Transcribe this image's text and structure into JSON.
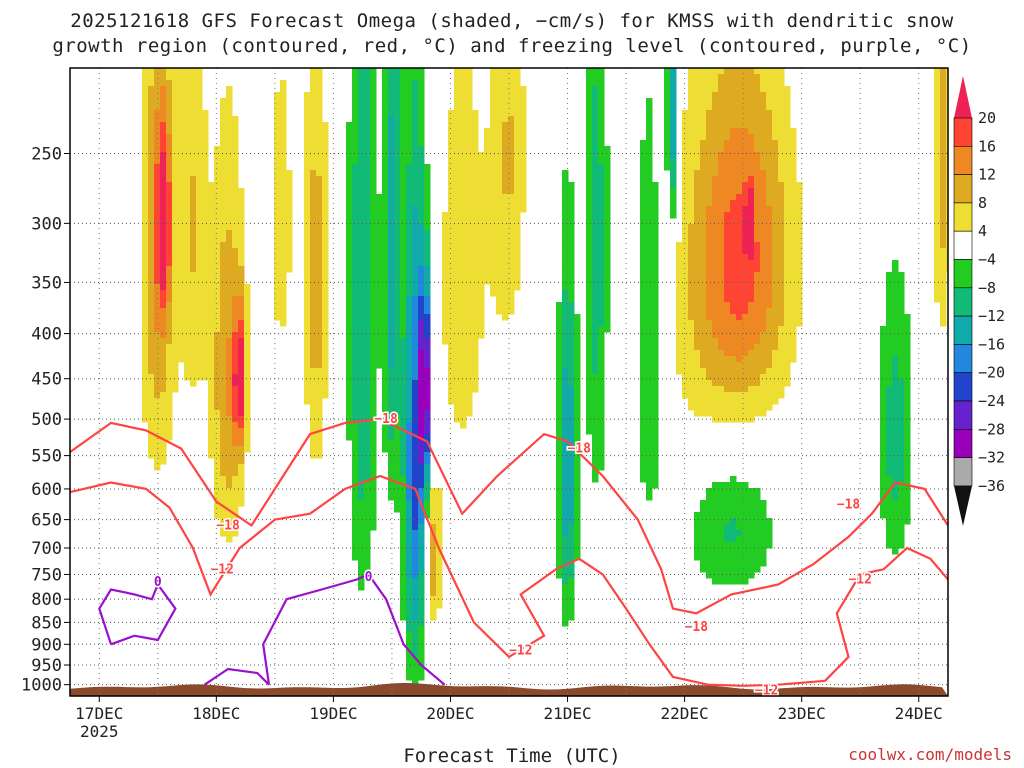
{
  "title_line1": "2025121618 GFS Forecast Omega (shaded, −cm/s) for KMSS with dendritic snow",
  "title_line2": "growth region (contoured, red, °C) and freezing level (contoured, purple, °C)",
  "credit": "coolwx.com/models",
  "chart_data": {
    "type": "heatmap",
    "title": "2025121618 GFS Forecast Omega (shaded, −cm/s) for KMSS with dendritic snow growth region (contoured, red, °C) and freezing level (contoured, purple, °C)",
    "xlabel": "Forecast Time (UTC)",
    "ylabel": "",
    "x_ticks": [
      {
        "day": 17,
        "label": "17DEC"
      },
      {
        "day": 18,
        "label": "18DEC"
      },
      {
        "day": 19,
        "label": "19DEC"
      },
      {
        "day": 20,
        "label": "20DEC"
      },
      {
        "day": 21,
        "label": "21DEC"
      },
      {
        "day": 22,
        "label": "22DEC"
      },
      {
        "day": 23,
        "label": "23DEC"
      },
      {
        "day": 24,
        "label": "24DEC"
      }
    ],
    "x_year_label": "2025",
    "xlim": [
      16.75,
      24.25
    ],
    "y_ticks": [
      "250",
      "300",
      "350",
      "400",
      "450",
      "500",
      "550",
      "600",
      "650",
      "700",
      "750",
      "800",
      "850",
      "900",
      "950",
      "1000"
    ],
    "ylim_hpa": [
      1030,
      200
    ],
    "colorbar": {
      "labels": [
        "20",
        "16",
        "12",
        "8",
        "4",
        "−4",
        "−8",
        "−12",
        "−16",
        "−20",
        "−24",
        "−28",
        "−32",
        "−36"
      ],
      "colors": [
        "#ee2255",
        "#ff4433",
        "#ee8822",
        "#ddaa22",
        "#eedd33",
        "#ffffff",
        "#22cc22",
        "#11bb77",
        "#11aaaa",
        "#2288dd",
        "#2244cc",
        "#6622cc",
        "#9900bb",
        "#aaaaaa",
        "#111111"
      ]
    },
    "omega_blobs": [
      {
        "day": 17.5,
        "p": 330,
        "dx": 0.15,
        "dp": 230,
        "v": 12
      },
      {
        "day": 17.55,
        "p": 300,
        "dx": 0.06,
        "dp": 70,
        "v": 18
      },
      {
        "day": 17.8,
        "p": 300,
        "dx": 0.12,
        "dp": 180,
        "v": 8
      },
      {
        "day": 18.1,
        "p": 450,
        "dx": 0.15,
        "dp": 230,
        "v": 12
      },
      {
        "day": 18.2,
        "p": 450,
        "dx": 0.05,
        "dp": 80,
        "v": 19
      },
      {
        "day": 18.55,
        "p": 300,
        "dx": 0.12,
        "dp": 150,
        "v": 6
      },
      {
        "day": 18.85,
        "p": 350,
        "dx": 0.1,
        "dp": 220,
        "v": 10
      },
      {
        "day": 19.25,
        "p": 380,
        "dx": 0.12,
        "dp": 380,
        "v": -12
      },
      {
        "day": 19.5,
        "p": 330,
        "dx": 0.07,
        "dp": 250,
        "v": -14
      },
      {
        "day": 19.7,
        "p": 560,
        "dx": 0.1,
        "dp": 360,
        "v": -22
      },
      {
        "day": 19.78,
        "p": 460,
        "dx": 0.04,
        "dp": 120,
        "v": -29
      },
      {
        "day": 19.85,
        "p": 720,
        "dx": 0.07,
        "dp": 140,
        "v": 12
      },
      {
        "day": 20.1,
        "p": 350,
        "dx": 0.25,
        "dp": 250,
        "v": 6
      },
      {
        "day": 20.5,
        "p": 250,
        "dx": 0.15,
        "dp": 150,
        "v": 8
      },
      {
        "day": 21.0,
        "p": 560,
        "dx": 0.08,
        "dp": 260,
        "v": -16
      },
      {
        "day": 21.25,
        "p": 330,
        "dx": 0.1,
        "dp": 280,
        "v": -10
      },
      {
        "day": 21.7,
        "p": 400,
        "dx": 0.15,
        "dp": 250,
        "v": -9
      },
      {
        "day": 21.9,
        "p": 220,
        "dx": 0.05,
        "dp": 80,
        "v": -17
      },
      {
        "day": 22.5,
        "p": 320,
        "dx": 0.4,
        "dp": 140,
        "v": 13
      },
      {
        "day": 22.55,
        "p": 300,
        "dx": 0.03,
        "dp": 25,
        "v": 18
      },
      {
        "day": 22.3,
        "p": 380,
        "dx": 0.6,
        "dp": 200,
        "v": 6
      },
      {
        "day": 22.4,
        "p": 660,
        "dx": 0.4,
        "dp": 130,
        "v": -9
      },
      {
        "day": 23.8,
        "p": 520,
        "dx": 0.15,
        "dp": 200,
        "v": -10
      },
      {
        "day": 24.2,
        "p": 250,
        "dx": 0.08,
        "dp": 150,
        "v": 10
      }
    ],
    "contours": [
      {
        "name": "dendritic-upper",
        "color": "#ff4444",
        "points": [
          [
            16.75,
            545
          ],
          [
            17.1,
            505
          ],
          [
            17.4,
            515
          ],
          [
            17.7,
            540
          ],
          [
            18.0,
            620
          ],
          [
            18.3,
            660
          ],
          [
            18.5,
            600
          ],
          [
            18.8,
            520
          ],
          [
            19.1,
            505
          ],
          [
            19.4,
            500
          ],
          [
            19.8,
            530
          ],
          [
            20.1,
            640
          ],
          [
            20.4,
            580
          ],
          [
            20.8,
            520
          ],
          [
            21.0,
            530
          ],
          [
            21.3,
            580
          ],
          [
            21.6,
            650
          ],
          [
            21.8,
            740
          ],
          [
            21.9,
            820
          ],
          [
            22.1,
            830
          ],
          [
            22.4,
            790
          ],
          [
            22.8,
            770
          ],
          [
            23.1,
            730
          ],
          [
            23.4,
            680
          ],
          [
            23.6,
            640
          ],
          [
            23.8,
            590
          ],
          [
            24.05,
            600
          ],
          [
            24.25,
            660
          ]
        ],
        "labels": [
          {
            "day": 18.1,
            "p": 660,
            "text": "−18"
          },
          {
            "day": 19.45,
            "p": 500,
            "text": "−18"
          },
          {
            "day": 21.1,
            "p": 540,
            "text": "−18"
          },
          {
            "day": 22.1,
            "p": 860,
            "text": "−18"
          },
          {
            "day": 23.4,
            "p": 625,
            "text": "−18"
          }
        ]
      },
      {
        "name": "dendritic-lower",
        "color": "#ff4444",
        "points": [
          [
            16.75,
            605
          ],
          [
            17.1,
            590
          ],
          [
            17.4,
            600
          ],
          [
            17.6,
            630
          ],
          [
            17.8,
            700
          ],
          [
            17.95,
            790
          ],
          [
            18.2,
            700
          ],
          [
            18.5,
            650
          ],
          [
            18.8,
            640
          ],
          [
            19.1,
            600
          ],
          [
            19.4,
            580
          ],
          [
            19.7,
            600
          ],
          [
            19.9,
            700
          ],
          [
            20.2,
            850
          ],
          [
            20.5,
            930
          ],
          [
            20.8,
            880
          ],
          [
            20.6,
            790
          ],
          [
            20.9,
            740
          ],
          [
            21.1,
            720
          ],
          [
            21.3,
            750
          ],
          [
            21.5,
            820
          ],
          [
            21.7,
            900
          ],
          [
            21.9,
            980
          ],
          [
            22.2,
            1000
          ],
          [
            22.5,
            1003
          ],
          [
            22.8,
            1000
          ],
          [
            23.2,
            990
          ],
          [
            23.4,
            930
          ],
          [
            23.3,
            830
          ],
          [
            23.5,
            750
          ],
          [
            23.7,
            740
          ],
          [
            23.9,
            700
          ],
          [
            24.1,
            720
          ],
          [
            24.25,
            760
          ]
        ],
        "labels": [
          {
            "day": 18.05,
            "p": 740,
            "text": "−12"
          },
          {
            "day": 20.6,
            "p": 915,
            "text": "−12"
          },
          {
            "day": 22.7,
            "p": 1015,
            "text": "−12"
          },
          {
            "day": 23.5,
            "p": 760,
            "text": "−12"
          }
        ]
      },
      {
        "name": "freezing-level",
        "color": "#9911cc",
        "points": [
          [
            17.1,
            900
          ],
          [
            17.0,
            820
          ],
          [
            17.1,
            780
          ],
          [
            17.3,
            790
          ],
          [
            17.45,
            800
          ],
          [
            17.5,
            770
          ],
          [
            17.65,
            820
          ],
          [
            17.5,
            890
          ],
          [
            17.3,
            880
          ],
          [
            17.1,
            900
          ]
        ],
        "labels": [
          {
            "day": 17.5,
            "p": 765,
            "text": "0"
          }
        ]
      },
      {
        "name": "freezing-level-2",
        "color": "#9911cc",
        "points": [
          [
            18.45,
            1000
          ],
          [
            18.4,
            900
          ],
          [
            18.6,
            800
          ],
          [
            18.9,
            780
          ],
          [
            19.2,
            760
          ],
          [
            19.3,
            750
          ],
          [
            19.45,
            800
          ],
          [
            19.6,
            900
          ],
          [
            19.75,
            950
          ],
          [
            19.95,
            1000
          ]
        ],
        "labels": [
          {
            "day": 19.3,
            "p": 755,
            "text": "0"
          }
        ]
      },
      {
        "name": "freezing-level-3",
        "color": "#9911cc",
        "points": [
          [
            17.9,
            1000
          ],
          [
            18.1,
            960
          ],
          [
            18.35,
            970
          ],
          [
            18.45,
            1000
          ]
        ],
        "labels": []
      }
    ]
  }
}
